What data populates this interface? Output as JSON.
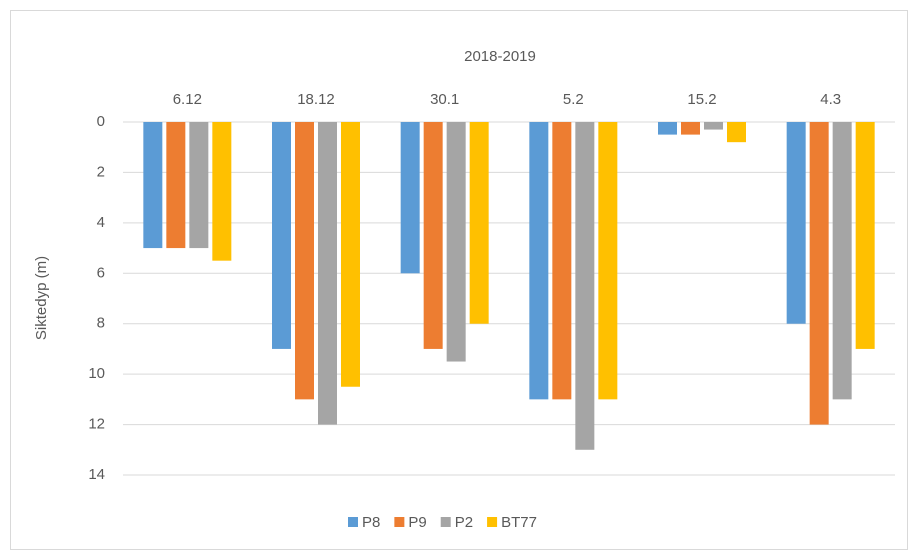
{
  "chart_data": {
    "type": "bar",
    "title": "2018-2019",
    "y_label": "Siktedyp (m)",
    "categories": [
      "6.12",
      "18.12",
      "30.1",
      "5.2",
      "15.2",
      "4.3"
    ],
    "series": [
      {
        "name": "P8",
        "color": "#5b9bd5",
        "values": [
          5,
          9,
          6,
          11,
          0.5,
          8
        ]
      },
      {
        "name": "P9",
        "color": "#ed7d31",
        "values": [
          5,
          11,
          9,
          11,
          0.5,
          12
        ]
      },
      {
        "name": "P2",
        "color": "#a5a5a5",
        "values": [
          5,
          12,
          9.5,
          13,
          0.3,
          11
        ]
      },
      {
        "name": "BT77",
        "color": "#ffc000",
        "values": [
          5.5,
          10.5,
          8,
          11,
          0.8,
          9
        ]
      }
    ],
    "ylim": [
      0,
      14
    ],
    "yticks": [
      0,
      2,
      4,
      6,
      8,
      10,
      12,
      14
    ],
    "y_inverted": true,
    "grid": true,
    "legend": "bottom"
  }
}
